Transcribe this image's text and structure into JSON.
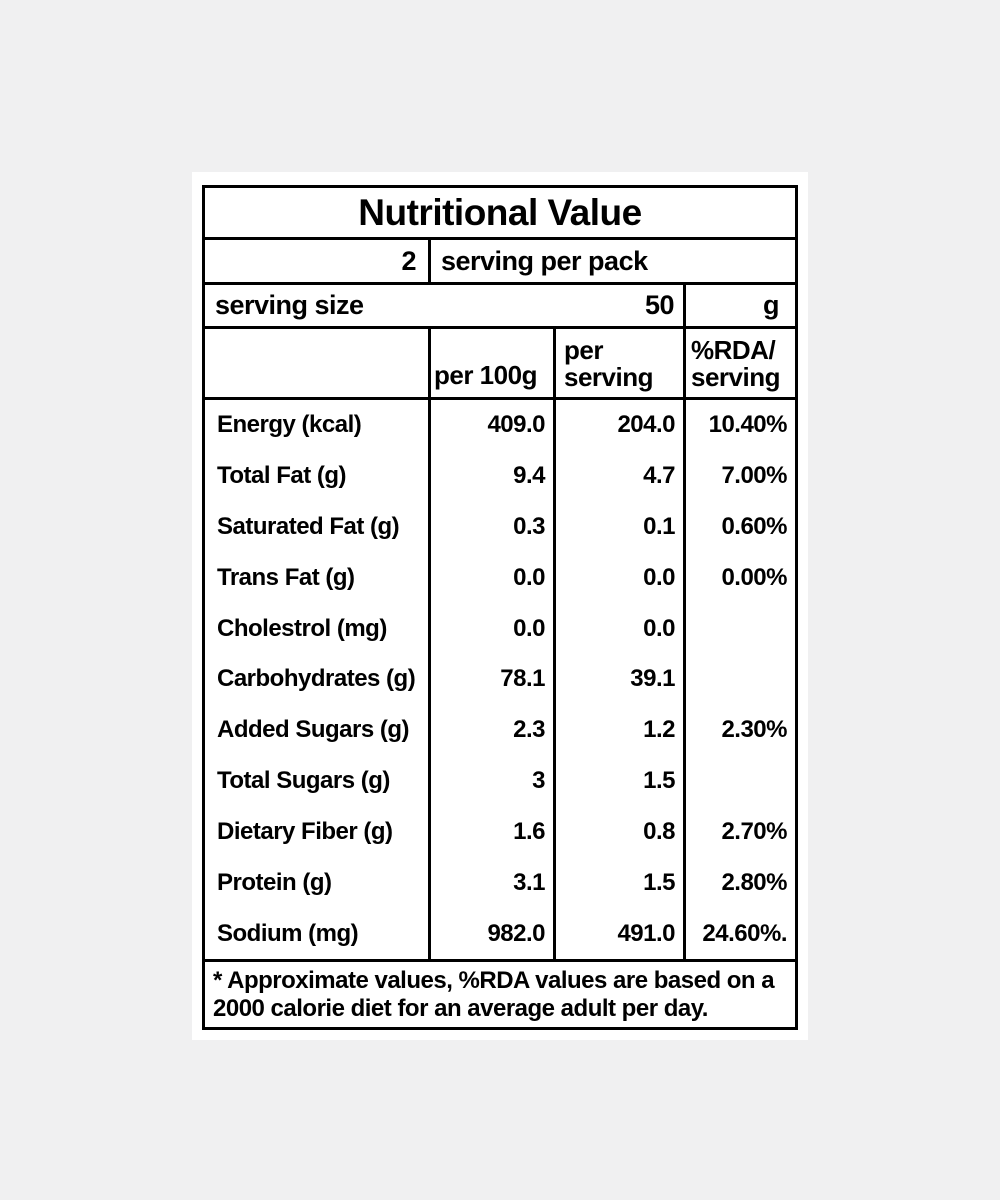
{
  "label": {
    "title": "Nutritional Value",
    "servings_per_pack": {
      "count": "2",
      "text": "serving per pack"
    },
    "serving_size": {
      "label": "serving size",
      "value": "50",
      "unit": "g"
    },
    "columns": {
      "per_100g": "per 100g",
      "per_serving_line1": "per",
      "per_serving_line2": "serving",
      "rda_line1": "%RDA/",
      "rda_line2": "serving"
    },
    "rows": [
      {
        "name": "Energy (kcal)",
        "per_100g": "409.0",
        "per_serving": "204.0",
        "rda": "10.40%"
      },
      {
        "name": "Total Fat (g)",
        "per_100g": "9.4",
        "per_serving": "4.7",
        "rda": "7.00%"
      },
      {
        "name": "Saturated Fat (g)",
        "per_100g": "0.3",
        "per_serving": "0.1",
        "rda": "0.60%"
      },
      {
        "name": "Trans Fat (g)",
        "per_100g": "0.0",
        "per_serving": "0.0",
        "rda": "0.00%"
      },
      {
        "name": "Cholestrol (mg)",
        "per_100g": "0.0",
        "per_serving": "0.0",
        "rda": ""
      },
      {
        "name": "Carbohydrates (g)",
        "per_100g": "78.1",
        "per_serving": "39.1",
        "rda": ""
      },
      {
        "name": "Added Sugars (g)",
        "per_100g": "2.3",
        "per_serving": "1.2",
        "rda": "2.30%"
      },
      {
        "name": "Total Sugars (g)",
        "per_100g": "3",
        "per_serving": "1.5",
        "rda": ""
      },
      {
        "name": "Dietary Fiber (g)",
        "per_100g": "1.6",
        "per_serving": "0.8",
        "rda": "2.70%"
      },
      {
        "name": "Protein (g)",
        "per_100g": "3.1",
        "per_serving": "1.5",
        "rda": "2.80%"
      },
      {
        "name": "Sodium (mg)",
        "per_100g": "982.0",
        "per_serving": "491.0",
        "rda": "24.60%."
      }
    ],
    "footnote_line1": "* Approximate values, %RDA values are based on a",
    "footnote_line2": "2000 calorie diet for an average adult per day."
  },
  "colors": {
    "background": "#f0f0f1",
    "panel": "#ffffff",
    "border": "#000000",
    "text": "#000000"
  }
}
